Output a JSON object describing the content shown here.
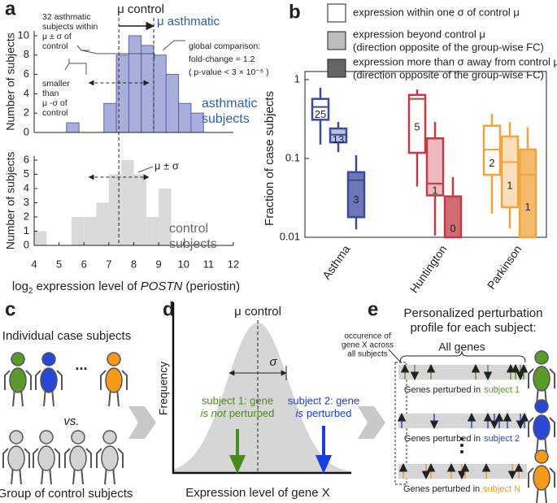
{
  "panel_labels": [
    "a",
    "b",
    "c",
    "d",
    "e"
  ],
  "chart_data": [
    {
      "type": "histogram",
      "ylabel": "Number of subjects",
      "bins": [
        5.3,
        5.8,
        6.3,
        6.8,
        7.3,
        7.8,
        8.3,
        8.8,
        9.3,
        9.8,
        10.3,
        10.8
      ],
      "values": [
        1,
        0,
        0,
        3,
        8,
        10,
        9,
        8,
        6,
        3,
        2
      ],
      "color": "#a9afdd",
      "edgecolor": "#5b64b0",
      "xlim": [
        4,
        12
      ],
      "ylim": [
        0,
        10.5
      ],
      "yticks": [
        0,
        2,
        4,
        6,
        8,
        10
      ],
      "asthmatic_mean": 8.8,
      "annotations": {
        "mu_control": "μ control",
        "mu_asthmatic": "μ asthmatic",
        "within": [
          "32 asthmatic",
          "subjects within",
          "μ ± σ  of",
          "control"
        ],
        "smaller": [
          "smaller",
          "than",
          "μ -σ of",
          "control"
        ],
        "global": [
          "global comparison:",
          "fold-change = 1.2",
          "( p-value < 3 × 10⁻⁶ )"
        ],
        "series_label": [
          "asthmatic",
          "subjects"
        ]
      }
    },
    {
      "type": "histogram",
      "ylabel": "Number of subjects",
      "bins": [
        4.0,
        4.5,
        5.0,
        5.5,
        6.0,
        6.5,
        7.0,
        7.5,
        8.0,
        8.5,
        9.0,
        9.5
      ],
      "values": [
        1,
        0,
        0,
        2,
        2,
        3,
        5,
        6,
        5,
        2,
        4
      ],
      "color": "#d9d9d9",
      "xlim": [
        4,
        12
      ],
      "ylim": [
        0,
        6.3
      ],
      "yticks": [
        0,
        1,
        2,
        3,
        4,
        5,
        6
      ],
      "xticks": [
        4,
        5,
        6,
        7,
        8,
        9,
        10,
        11,
        12
      ],
      "xlabel": [
        "log",
        "2",
        "expression level of",
        "POSTN",
        "(periostin)"
      ],
      "control_mean": 7.4,
      "sigma": 1.2,
      "annotations": {
        "mu_sigma": "μ ± σ",
        "series_label": [
          "control",
          "subjects"
        ]
      }
    },
    {
      "type": "box",
      "ylabel": "Fraction of case subjects",
      "log": true,
      "ylim": [
        0.01,
        1
      ],
      "yticks": [
        0.01,
        0.1,
        1
      ],
      "categories": [
        "Asthma",
        "Huntington",
        "Parkinson"
      ],
      "colors": [
        "#3c4a9e",
        "#c23a44",
        "#f2a33a"
      ],
      "series": [
        {
          "name": "expression within one σ of control μ",
          "swatch": "#ffffff",
          "fill_opacity": 0,
          "boxes": [
            {
              "whislo": 0.15,
              "q1": 0.31,
              "med": 0.45,
              "q3": 0.57,
              "whishi": 0.79,
              "count": 25
            },
            {
              "whislo": 0.044,
              "q1": 0.118,
              "med": 0.57,
              "q3": 0.64,
              "whishi": 0.75,
              "count": 5
            },
            {
              "whislo": 0.02,
              "q1": 0.062,
              "med": 0.13,
              "q3": 0.26,
              "whishi": 0.37,
              "count": 2
            }
          ]
        },
        {
          "name": "expression beyond control μ",
          "name_note": "(direction opposite of the group-wise FC)",
          "swatch": "#bdbdbd",
          "fill_opacity": 0.35,
          "boxes": [
            {
              "whislo": 0.12,
              "q1": 0.16,
              "med": 0.2,
              "q3": 0.24,
              "whishi": 0.29,
              "count": 13
            },
            {
              "whislo": 0.0105,
              "q1": 0.034,
              "med": 0.048,
              "q3": 0.18,
              "whishi": 0.29,
              "count": 1
            },
            {
              "whislo": 0.013,
              "q1": 0.024,
              "med": 0.09,
              "q3": 0.19,
              "whishi": 0.29,
              "count": 1
            }
          ]
        },
        {
          "name": "expression more than σ away from control μ",
          "name_note": "(direction opposite of the group-wise FC)",
          "swatch": "#666666",
          "fill_opacity": 0.75,
          "boxes": [
            {
              "whislo": 0.0126,
              "q1": 0.018,
              "med": 0.053,
              "q3": 0.067,
              "whishi": 0.11,
              "count": 3
            },
            {
              "whislo": 0.01,
              "q1": 0.01,
              "med": 0.01,
              "q3": 0.033,
              "whishi": 0.058,
              "count": 0
            },
            {
              "whislo": 0.01,
              "q1": 0.01,
              "med": 0.062,
              "q3": 0.13,
              "whishi": 0.25,
              "count": 1
            }
          ]
        }
      ]
    }
  ],
  "panel_c": {
    "top": "Individual case subjects",
    "ellipsis": "...",
    "vs": "vs.",
    "bottom": "Group of control subjects"
  },
  "panel_d": {
    "mu_control": "μ control",
    "sigma": "σ",
    "ylabel": "Frequency",
    "subject1": [
      "subject 1: gene",
      "is not",
      "perturbed"
    ],
    "subject2": [
      "subject 2: gene",
      "is",
      "perturbed"
    ],
    "xlabel": "Expression level of gene X"
  },
  "panel_e": {
    "title": [
      "Personalized perturbation",
      "profile for each subject:"
    ],
    "occurrence": [
      "occurence of",
      "gene X across",
      "all subjects"
    ],
    "all_genes": "All genes",
    "row_prefix": "Genes perturbed in",
    "subjects": [
      "subject 1",
      "subject 2",
      "subject N"
    ]
  }
}
